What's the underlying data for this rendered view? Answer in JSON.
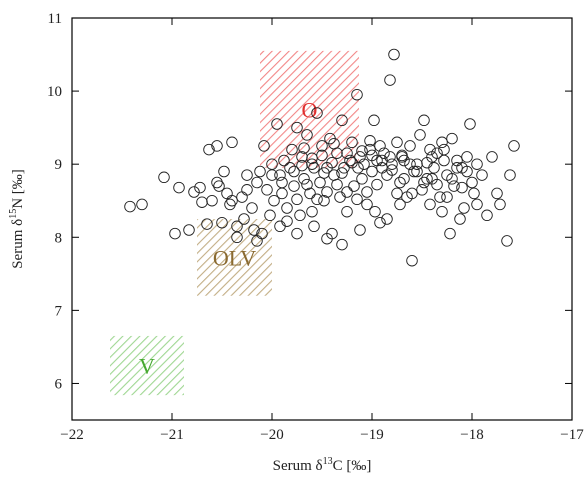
{
  "chart_data": {
    "type": "scatter",
    "xlabel": {
      "prefix": "Serum δ",
      "sup": "13",
      "suffix": "C [‰]"
    },
    "ylabel": {
      "prefix": "Serum δ",
      "sup": "15",
      "suffix": "N [‰]"
    },
    "xlim": [
      -22,
      -17
    ],
    "ylim": [
      5.5,
      11
    ],
    "xticks": [
      -22,
      -21,
      -20,
      -19,
      -18,
      -17
    ],
    "yticks": [
      6,
      7,
      8,
      9,
      10,
      11
    ],
    "xtick_labels": [
      "−22",
      "−21",
      "−20",
      "−19",
      "−18",
      "−17"
    ],
    "ytick_labels": [
      "6",
      "7",
      "8",
      "9",
      "10",
      "11"
    ],
    "grid": false,
    "regions": [
      {
        "label": "O",
        "x": [
          -20.12,
          -19.13
        ],
        "y": [
          8.95,
          10.55
        ],
        "color": "#f07070",
        "text_color": "#e03030"
      },
      {
        "label": "OLV",
        "x": [
          -20.75,
          -20.0
        ],
        "y": [
          7.2,
          8.25
        ],
        "color": "#b8a070",
        "text_color": "#8a6a30"
      },
      {
        "label": "V",
        "x": [
          -21.62,
          -20.88
        ],
        "y": [
          5.84,
          6.65
        ],
        "color": "#8fd080",
        "text_color": "#46a830"
      }
    ],
    "points": [
      [
        -21.42,
        8.42
      ],
      [
        -21.3,
        8.45
      ],
      [
        -21.08,
        8.82
      ],
      [
        -20.97,
        8.05
      ],
      [
        -20.93,
        8.68
      ],
      [
        -20.83,
        8.1
      ],
      [
        -20.78,
        8.62
      ],
      [
        -20.72,
        8.68
      ],
      [
        -20.7,
        8.48
      ],
      [
        -20.65,
        8.18
      ],
      [
        -20.63,
        9.2
      ],
      [
        -20.6,
        8.5
      ],
      [
        -20.55,
        9.25
      ],
      [
        -20.53,
        8.7
      ],
      [
        -20.5,
        8.2
      ],
      [
        -20.48,
        8.9
      ],
      [
        -20.45,
        8.6
      ],
      [
        -20.42,
        8.45
      ],
      [
        -20.4,
        9.3
      ],
      [
        -20.35,
        8.15
      ],
      [
        -20.3,
        8.55
      ],
      [
        -20.28,
        8.25
      ],
      [
        -20.25,
        8.85
      ],
      [
        -20.2,
        8.4
      ],
      [
        -20.18,
        8.1
      ],
      [
        -20.15,
        8.75
      ],
      [
        -20.1,
        8.05
      ],
      [
        -20.08,
        9.25
      ],
      [
        -20.05,
        8.65
      ],
      [
        -20.02,
        8.3
      ],
      [
        -20.0,
        9.0
      ],
      [
        -19.98,
        8.5
      ],
      [
        -19.95,
        9.55
      ],
      [
        -19.92,
        8.85
      ],
      [
        -19.9,
        8.6
      ],
      [
        -19.88,
        9.05
      ],
      [
        -19.85,
        8.4
      ],
      [
        -19.82,
        8.95
      ],
      [
        -19.8,
        9.2
      ],
      [
        -19.78,
        8.7
      ],
      [
        -19.75,
        9.5
      ],
      [
        -19.72,
        8.3
      ],
      [
        -19.7,
        9.1
      ],
      [
        -19.68,
        8.8
      ],
      [
        -19.65,
        9.4
      ],
      [
        -19.62,
        8.6
      ],
      [
        -19.6,
        9.0
      ],
      [
        -19.58,
        8.15
      ],
      [
        -19.55,
        9.7
      ],
      [
        -19.52,
        8.75
      ],
      [
        -19.5,
        9.25
      ],
      [
        -19.48,
        8.5
      ],
      [
        -19.45,
        8.95
      ],
      [
        -19.42,
        9.35
      ],
      [
        -19.4,
        8.05
      ],
      [
        -19.38,
        8.85
      ],
      [
        -19.35,
        9.15
      ],
      [
        -19.32,
        8.55
      ],
      [
        -19.3,
        9.6
      ],
      [
        -19.28,
        8.95
      ],
      [
        -19.25,
        8.35
      ],
      [
        -19.22,
        9.05
      ],
      [
        -19.2,
        9.3
      ],
      [
        -19.18,
        8.7
      ],
      [
        -19.15,
        9.95
      ],
      [
        -19.12,
        9.1
      ],
      [
        -19.1,
        8.8
      ],
      [
        -19.08,
        9.0
      ],
      [
        -19.05,
        8.45
      ],
      [
        -19.02,
        9.2
      ],
      [
        -19.0,
        8.9
      ],
      [
        -18.98,
        9.6
      ],
      [
        -18.95,
        9.05
      ],
      [
        -18.92,
        8.2
      ],
      [
        -18.9,
        8.95
      ],
      [
        -18.88,
        9.15
      ],
      [
        -18.85,
        8.85
      ],
      [
        -18.82,
        10.15
      ],
      [
        -18.8,
        9.0
      ],
      [
        -18.78,
        10.5
      ],
      [
        -18.75,
        9.3
      ],
      [
        -18.72,
        8.75
      ],
      [
        -18.7,
        9.1
      ],
      [
        -18.68,
        9.05
      ],
      [
        -18.65,
        8.55
      ],
      [
        -18.62,
        9.25
      ],
      [
        -18.6,
        7.68
      ],
      [
        -18.58,
        8.9
      ],
      [
        -18.55,
        9.0
      ],
      [
        -18.52,
        9.4
      ],
      [
        -18.5,
        8.65
      ],
      [
        -18.48,
        9.6
      ],
      [
        -18.45,
        8.8
      ],
      [
        -18.42,
        8.45
      ],
      [
        -18.4,
        9.1
      ],
      [
        -18.38,
        8.95
      ],
      [
        -18.35,
        9.15
      ],
      [
        -18.32,
        8.55
      ],
      [
        -18.3,
        8.35
      ],
      [
        -18.28,
        9.2
      ],
      [
        -18.25,
        8.85
      ],
      [
        -18.22,
        8.05
      ],
      [
        -18.2,
        9.35
      ],
      [
        -18.18,
        8.7
      ],
      [
        -18.15,
        9.05
      ],
      [
        -18.12,
        8.25
      ],
      [
        -18.1,
        8.95
      ],
      [
        -18.08,
        8.4
      ],
      [
        -18.05,
        9.1
      ],
      [
        -18.02,
        9.55
      ],
      [
        -18.0,
        8.75
      ],
      [
        -17.98,
        8.6
      ],
      [
        -17.95,
        9.0
      ],
      [
        -17.9,
        8.85
      ],
      [
        -17.85,
        8.3
      ],
      [
        -17.8,
        9.1
      ],
      [
        -17.75,
        8.6
      ],
      [
        -17.72,
        8.45
      ],
      [
        -17.65,
        7.95
      ],
      [
        -17.62,
        8.85
      ],
      [
        -17.58,
        9.25
      ],
      [
        -19.7,
        8.98
      ],
      [
        -19.6,
        9.08
      ],
      [
        -19.5,
        9.12
      ],
      [
        -19.4,
        9.02
      ],
      [
        -19.3,
        8.88
      ],
      [
        -19.2,
        9.02
      ],
      [
        -19.1,
        9.18
      ],
      [
        -19.0,
        9.12
      ],
      [
        -18.9,
        9.05
      ],
      [
        -18.8,
        8.92
      ],
      [
        -18.7,
        9.12
      ],
      [
        -19.35,
        8.72
      ],
      [
        -19.25,
        8.62
      ],
      [
        -19.15,
        8.52
      ],
      [
        -19.05,
        8.62
      ],
      [
        -18.95,
        8.72
      ],
      [
        -19.45,
        8.62
      ],
      [
        -19.55,
        8.52
      ],
      [
        -19.65,
        8.72
      ],
      [
        -19.75,
        8.52
      ],
      [
        -19.85,
        8.22
      ],
      [
        -19.6,
        8.35
      ],
      [
        -19.45,
        7.98
      ],
      [
        -19.3,
        7.9
      ],
      [
        -19.12,
        8.1
      ],
      [
        -18.97,
        8.35
      ],
      [
        -18.85,
        8.25
      ],
      [
        -18.72,
        8.45
      ],
      [
        -18.6,
        8.6
      ],
      [
        -18.48,
        8.75
      ],
      [
        -18.35,
        8.72
      ],
      [
        -18.25,
        8.55
      ],
      [
        -18.1,
        8.68
      ],
      [
        -17.95,
        8.45
      ],
      [
        -18.05,
        8.9
      ],
      [
        -18.15,
        8.95
      ],
      [
        -18.28,
        9.05
      ],
      [
        -18.4,
        8.8
      ],
      [
        -18.55,
        8.9
      ],
      [
        -18.68,
        8.8
      ],
      [
        -18.82,
        9.1
      ],
      [
        -18.92,
        9.25
      ],
      [
        -19.02,
        9.32
      ],
      [
        -19.14,
        8.95
      ],
      [
        -19.25,
        9.15
      ],
      [
        -19.38,
        9.28
      ],
      [
        -19.48,
        8.88
      ],
      [
        -19.58,
        8.95
      ],
      [
        -19.68,
        9.22
      ],
      [
        -19.78,
        8.9
      ],
      [
        -19.9,
        8.75
      ],
      [
        -20.0,
        8.85
      ],
      [
        -20.12,
        8.9
      ],
      [
        -20.25,
        8.65
      ],
      [
        -20.4,
        8.5
      ],
      [
        -20.55,
        8.75
      ],
      [
        -20.35,
        8.0
      ],
      [
        -20.15,
        7.95
      ],
      [
        -19.92,
        8.15
      ],
      [
        -19.75,
        8.05
      ],
      [
        -18.75,
        8.6
      ],
      [
        -18.62,
        9.0
      ],
      [
        -18.45,
        9.02
      ],
      [
        -18.2,
        8.8
      ],
      [
        -18.3,
        9.3
      ],
      [
        -18.42,
        9.2
      ]
    ]
  }
}
